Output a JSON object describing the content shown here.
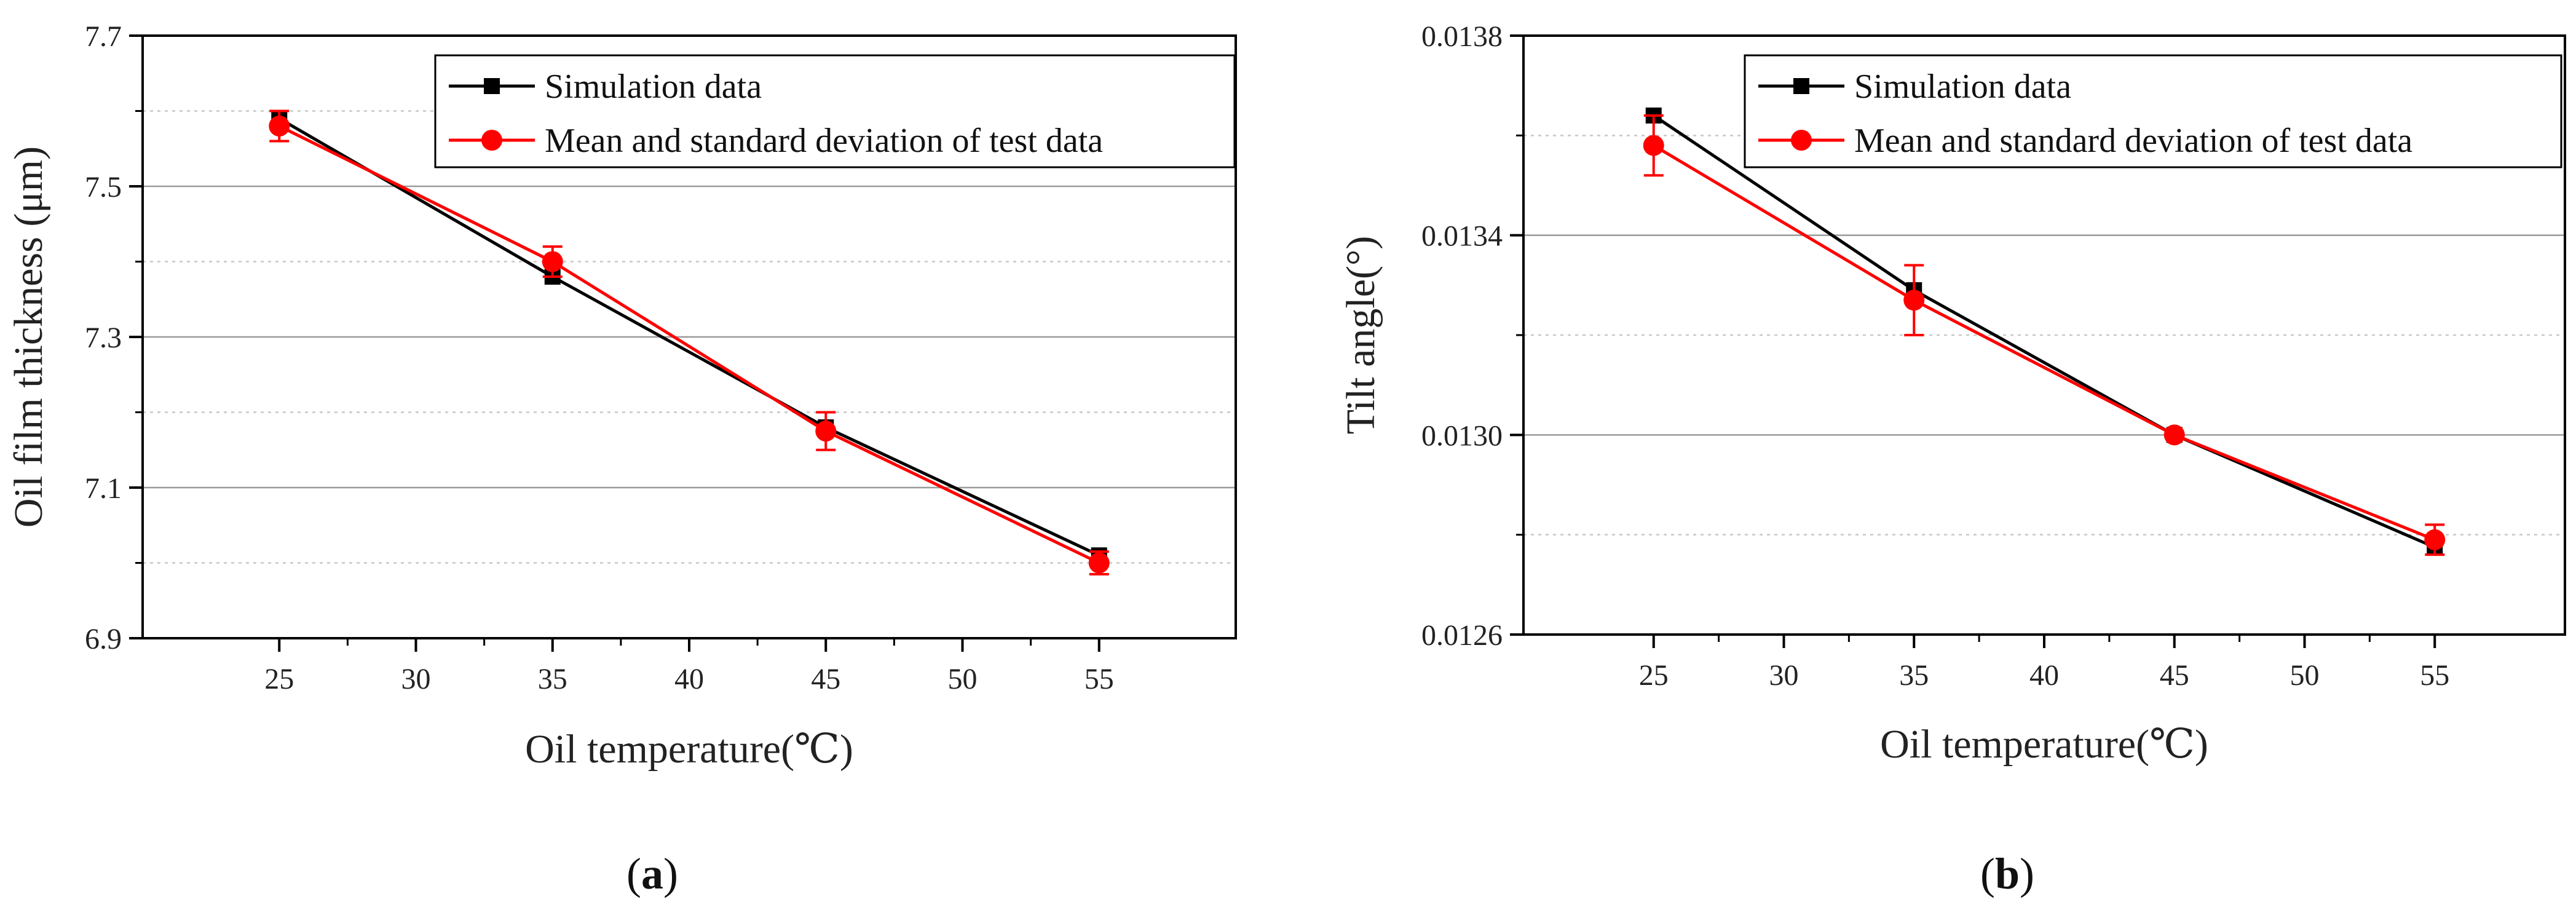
{
  "colors": {
    "sim": "#000000",
    "test": "#ff0000",
    "grid_major": "#9a9a9a",
    "grid_minor": "#c8c8c8",
    "axis": "#000000"
  },
  "chart_data": [
    {
      "type": "line",
      "panel_label": "(a)",
      "panel_letter": "a",
      "xlabel": "Oil temperature(℃)",
      "ylabel": "Oil film thickness (μm)",
      "xlim": [
        20,
        60
      ],
      "ylim": [
        6.9,
        7.7
      ],
      "xticks": [
        25,
        30,
        35,
        40,
        45,
        50,
        55
      ],
      "xtick_labels": [
        "25",
        "30",
        "35",
        "40",
        "45",
        "50",
        "55"
      ],
      "yticks": [
        6.9,
        7.1,
        7.3,
        7.5,
        7.7
      ],
      "ytick_labels": [
        "6.9",
        "7.1",
        "7.3",
        "7.5",
        "7.7"
      ],
      "yminor_grid": [
        7.0,
        7.2,
        7.4,
        7.6
      ],
      "legend_position": "top-right",
      "series": [
        {
          "name": "Simulation data",
          "marker": "square",
          "x": [
            25,
            35,
            45,
            55
          ],
          "y": [
            7.59,
            7.38,
            7.18,
            7.01
          ]
        },
        {
          "name": "Mean and standard deviation of test data",
          "marker": "circle",
          "x": [
            25,
            35,
            45,
            55
          ],
          "y": [
            7.58,
            7.4,
            7.175,
            7.0
          ],
          "yerr": [
            0.02,
            0.02,
            0.025,
            0.015
          ]
        }
      ]
    },
    {
      "type": "line",
      "panel_label": "(b)",
      "panel_letter": "b",
      "xlabel": "Oil temperature(℃)",
      "ylabel": "Tilt angle(°)",
      "xlim": [
        20,
        60
      ],
      "ylim": [
        0.0126,
        0.0138
      ],
      "xticks": [
        25,
        30,
        35,
        40,
        45,
        50,
        55
      ],
      "xtick_labels": [
        "25",
        "30",
        "35",
        "40",
        "45",
        "50",
        "55"
      ],
      "yticks": [
        0.0126,
        0.013,
        0.0134,
        0.0138
      ],
      "ytick_labels": [
        "0.0126",
        "0.0130",
        "0.0134",
        "0.0138"
      ],
      "yminor_grid": [
        0.0128,
        0.0132,
        0.0136
      ],
      "legend_position": "top-right",
      "series": [
        {
          "name": "Simulation data",
          "marker": "square",
          "x": [
            25,
            35,
            45,
            55
          ],
          "y": [
            0.01364,
            0.01329,
            0.013,
            0.012775
          ]
        },
        {
          "name": "Mean and standard deviation of test data",
          "marker": "circle",
          "x": [
            25,
            35,
            45,
            55
          ],
          "y": [
            0.01358,
            0.01327,
            0.013,
            0.01279
          ],
          "yerr": [
            6e-05,
            7e-05,
            0.0,
            3e-05
          ]
        }
      ]
    }
  ]
}
